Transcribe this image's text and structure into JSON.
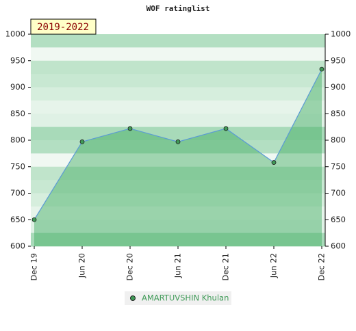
{
  "chart_data": {
    "type": "area",
    "title": "WOF ratinglist",
    "annotation": "2019-2022",
    "categories": [
      "Dec 19",
      "Jun 20",
      "Dec 20",
      "Jun 21",
      "Dec 21",
      "Jun 22",
      "Dec 22"
    ],
    "series": [
      {
        "name": "AMARTUVSHIN Khulan",
        "color": "#3f9a57",
        "line_color": "#5b9bd5",
        "values": [
          650,
          797,
          822,
          797,
          822,
          758,
          934
        ]
      }
    ],
    "ylim": [
      600,
      1000
    ],
    "yticks": [
      600,
      650,
      700,
      750,
      800,
      850,
      900,
      950,
      1000
    ],
    "y2lim": [
      600,
      1000
    ],
    "y2ticks": [
      600,
      650,
      700,
      750,
      800,
      850,
      900,
      950,
      1000
    ]
  }
}
